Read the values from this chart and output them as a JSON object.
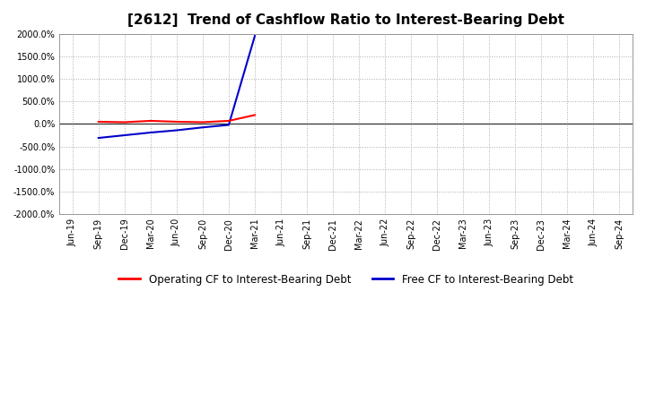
{
  "title": "[2612]  Trend of Cashflow Ratio to Interest-Bearing Debt",
  "x_labels": [
    "Jun-19",
    "Sep-19",
    "Dec-19",
    "Mar-20",
    "Jun-20",
    "Sep-20",
    "Dec-20",
    "Mar-21",
    "Jun-21",
    "Sep-21",
    "Dec-21",
    "Mar-22",
    "Jun-22",
    "Sep-22",
    "Dec-22",
    "Mar-23",
    "Jun-23",
    "Sep-23",
    "Dec-23",
    "Mar-24",
    "Jun-24",
    "Sep-24"
  ],
  "operating_cf": [
    null,
    50,
    40,
    70,
    50,
    40,
    70,
    200,
    null,
    null,
    null,
    null,
    null,
    null,
    null,
    null,
    null,
    null,
    null,
    null,
    null,
    null
  ],
  "free_cf": [
    null,
    -310,
    -250,
    -190,
    -140,
    -75,
    -20,
    1960,
    null,
    null,
    null,
    null,
    null,
    null,
    null,
    null,
    null,
    null,
    null,
    null,
    null,
    null
  ],
  "operating_color": "#ff0000",
  "free_color": "#0000cc",
  "background_color": "#ffffff",
  "plot_bg_color": "#ffffff",
  "grid_color": "#aaaaaa",
  "ylim": [
    -2000,
    2000
  ],
  "yticks": [
    -2000,
    -1500,
    -1000,
    -500,
    0,
    500,
    1000,
    1500,
    2000
  ],
  "legend_op": "Operating CF to Interest-Bearing Debt",
  "legend_free": "Free CF to Interest-Bearing Debt"
}
